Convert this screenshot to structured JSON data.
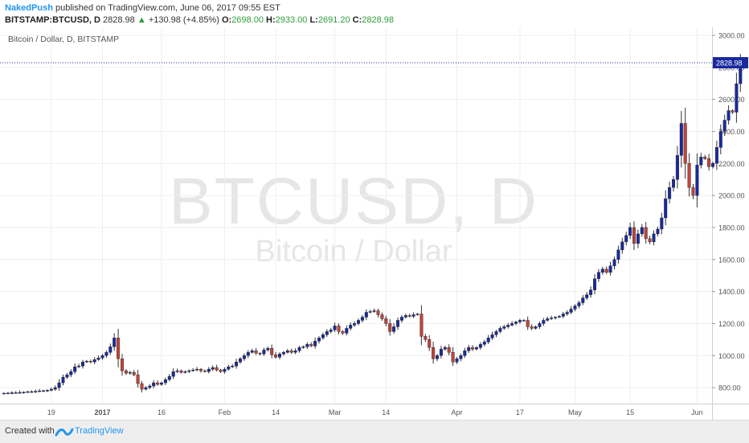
{
  "header": {
    "author": "NakedPush",
    "published_text": "published on TradingView.com, June 06, 2017 09:55 EST",
    "symbol": "BITSTAMP:BTCUSD, D",
    "last": "2828.98",
    "change_arrow": "▲",
    "change": "+130.98 (+4.85%)",
    "open_label": "O:",
    "open": "2698.00",
    "high_label": "H:",
    "high": "2933.00",
    "low_label": "L:",
    "low": "2691.20",
    "close_label": "C:",
    "close": "2828.98"
  },
  "legend": {
    "label": "Bitcoin / Dollar, D, BITSTAMP"
  },
  "watermark": {
    "main": "BTCUSD, D",
    "sub": "Bitcoin / Dollar"
  },
  "footer": {
    "created_with": "Created with",
    "brand": "TradingView",
    "logo_icon": "tradingview-logo-icon"
  },
  "chart_data": {
    "type": "candlestick",
    "title": "Bitcoin / Dollar, D, BITSTAMP",
    "start_date": "2016-12-07",
    "interval": "1D",
    "ylim": [
      700,
      3050
    ],
    "y_ticks": [
      800,
      1000,
      1200,
      1400,
      1600,
      1800,
      2000,
      2200,
      2400,
      2600,
      2800,
      3000
    ],
    "y_tick_labels": [
      "800.00",
      "1000.00",
      "1200.00",
      "1400.00",
      "1600.00",
      "1800.00",
      "2000.00",
      "2200.00",
      "2400.00",
      "2600.00",
      "2800.00",
      "3000.00"
    ],
    "x_ticks": [
      {
        "label": "19",
        "date": "2016-12-19"
      },
      {
        "label": "2017",
        "date": "2017-01-01"
      },
      {
        "label": "16",
        "date": "2017-01-16"
      },
      {
        "label": "Feb",
        "date": "2017-02-01"
      },
      {
        "label": "14",
        "date": "2017-02-14"
      },
      {
        "label": "Mar",
        "date": "2017-03-01"
      },
      {
        "label": "14",
        "date": "2017-03-14"
      },
      {
        "label": "Apr",
        "date": "2017-04-01"
      },
      {
        "label": "17",
        "date": "2017-04-17"
      },
      {
        "label": "May",
        "date": "2017-05-01"
      },
      {
        "label": "15",
        "date": "2017-05-15"
      },
      {
        "label": "Jun",
        "date": "2017-06-01"
      }
    ],
    "last_price": 2828.98,
    "last_price_label": "2828.98",
    "up_color": "#1a2a9e",
    "down_color": "#c1443a",
    "grid": true,
    "close": [
      765,
      766,
      768,
      768,
      770,
      772,
      774,
      775,
      777,
      779,
      781,
      783,
      790,
      800,
      830,
      865,
      880,
      900,
      930,
      935,
      960,
      965,
      960,
      975,
      985,
      1000,
      1020,
      1055,
      1110,
      980,
      905,
      890,
      895,
      880,
      825,
      790,
      800,
      810,
      830,
      820,
      830,
      850,
      870,
      900,
      905,
      895,
      900,
      905,
      910,
      915,
      905,
      900,
      915,
      925,
      910,
      900,
      915,
      930,
      935,
      960,
      980,
      1000,
      1020,
      1030,
      1015,
      1010,
      1035,
      1045,
      1005,
      990,
      1010,
      1020,
      1030,
      1020,
      1030,
      1050,
      1055,
      1070,
      1060,
      1090,
      1110,
      1130,
      1150,
      1160,
      1185,
      1150,
      1140,
      1170,
      1190,
      1200,
      1220,
      1240,
      1270,
      1275,
      1280,
      1255,
      1230,
      1200,
      1150,
      1180,
      1220,
      1240,
      1250,
      1245,
      1255,
      1260,
      1120,
      1100,
      1050,
      980,
      1000,
      1040,
      1050,
      1020,
      960,
      980,
      1000,
      1030,
      1050,
      1040,
      1050,
      1070,
      1085,
      1110,
      1130,
      1150,
      1170,
      1180,
      1190,
      1200,
      1210,
      1220,
      1220,
      1180,
      1170,
      1180,
      1200,
      1220,
      1230,
      1235,
      1240,
      1245,
      1260,
      1270,
      1290,
      1310,
      1330,
      1360,
      1380,
      1410,
      1480,
      1520,
      1540,
      1520,
      1560,
      1600,
      1660,
      1710,
      1750,
      1800,
      1700,
      1760,
      1800,
      1730,
      1710,
      1760,
      1790,
      1860,
      1980,
      2050,
      2100,
      2250,
      2450,
      2200,
      2050,
      2000,
      2190,
      2240,
      2230,
      2180,
      2200,
      2300,
      2400,
      2470,
      2530,
      2520,
      2698,
      2828.98
    ]
  }
}
